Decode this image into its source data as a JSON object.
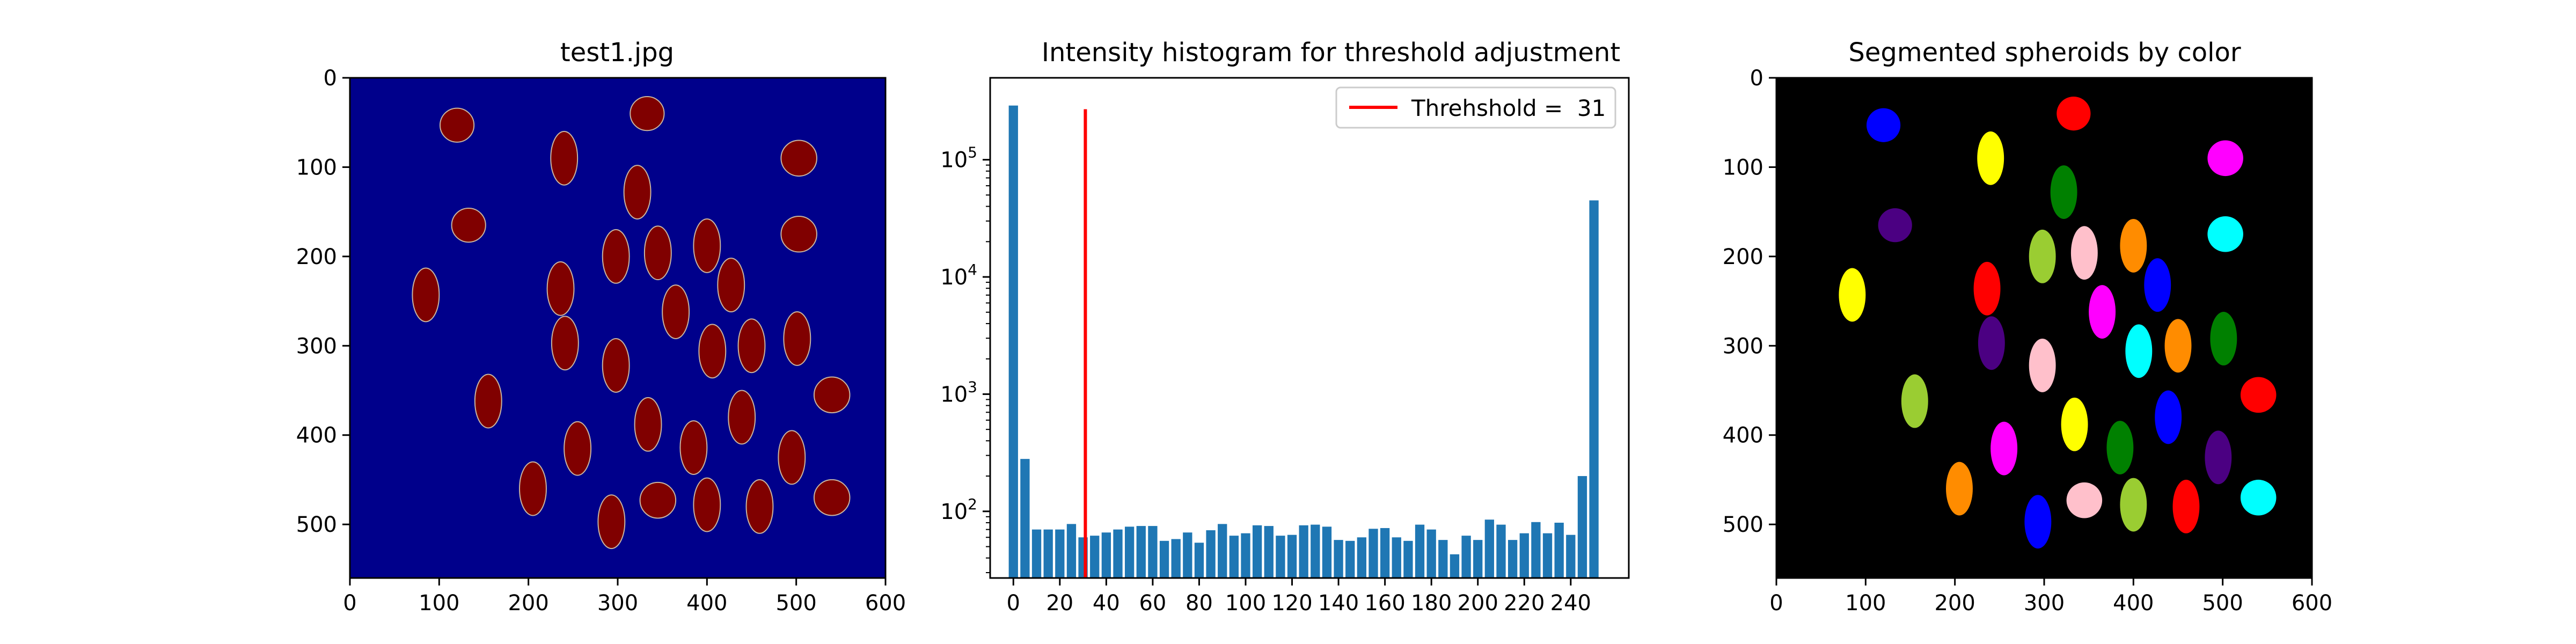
{
  "panel_left": {
    "title": "test1.jpg",
    "xticks": [
      "0",
      "100",
      "200",
      "300",
      "400",
      "500",
      "600"
    ],
    "yticks": [
      "0",
      "100",
      "200",
      "300",
      "400",
      "500"
    ],
    "background_color": "#00008b",
    "spheroid_color": "#800000",
    "spheroid_edge_color": "#c8b4a0"
  },
  "panel_right": {
    "title": "Segmented spheroids by color",
    "xticks": [
      "0",
      "100",
      "200",
      "300",
      "400",
      "500",
      "600"
    ],
    "yticks": [
      "0",
      "100",
      "200",
      "300",
      "400",
      "500"
    ],
    "background_color": "#000000"
  },
  "chart_data": [
    {
      "type": "image",
      "title": "test1.jpg",
      "xlim": [
        0,
        600
      ],
      "ylim": [
        560,
        0
      ],
      "objects": [
        {
          "x": 120,
          "y": 53,
          "rx": 19,
          "ry": 19
        },
        {
          "x": 333,
          "y": 40,
          "rx": 19,
          "ry": 19
        },
        {
          "x": 240,
          "y": 90,
          "rx": 15,
          "ry": 30
        },
        {
          "x": 503,
          "y": 90,
          "rx": 20,
          "ry": 20
        },
        {
          "x": 322,
          "y": 128,
          "rx": 15,
          "ry": 30
        },
        {
          "x": 133,
          "y": 165,
          "rx": 19,
          "ry": 19
        },
        {
          "x": 503,
          "y": 175,
          "rx": 20,
          "ry": 20
        },
        {
          "x": 400,
          "y": 188,
          "rx": 15,
          "ry": 30
        },
        {
          "x": 298,
          "y": 200,
          "rx": 15,
          "ry": 30
        },
        {
          "x": 345,
          "y": 196,
          "rx": 15,
          "ry": 30
        },
        {
          "x": 236,
          "y": 236,
          "rx": 15,
          "ry": 30
        },
        {
          "x": 85,
          "y": 243,
          "rx": 15,
          "ry": 30
        },
        {
          "x": 427,
          "y": 232,
          "rx": 15,
          "ry": 30
        },
        {
          "x": 365,
          "y": 262,
          "rx": 15,
          "ry": 30
        },
        {
          "x": 241,
          "y": 297,
          "rx": 15,
          "ry": 30
        },
        {
          "x": 298,
          "y": 322,
          "rx": 15,
          "ry": 30
        },
        {
          "x": 406,
          "y": 306,
          "rx": 15,
          "ry": 30
        },
        {
          "x": 450,
          "y": 300,
          "rx": 15,
          "ry": 30
        },
        {
          "x": 501,
          "y": 292,
          "rx": 15,
          "ry": 30
        },
        {
          "x": 540,
          "y": 355,
          "rx": 20,
          "ry": 20
        },
        {
          "x": 155,
          "y": 362,
          "rx": 15,
          "ry": 30
        },
        {
          "x": 334,
          "y": 388,
          "rx": 15,
          "ry": 30
        },
        {
          "x": 439,
          "y": 380,
          "rx": 15,
          "ry": 30
        },
        {
          "x": 255,
          "y": 415,
          "rx": 15,
          "ry": 30
        },
        {
          "x": 385,
          "y": 414,
          "rx": 15,
          "ry": 30
        },
        {
          "x": 495,
          "y": 425,
          "rx": 15,
          "ry": 30
        },
        {
          "x": 205,
          "y": 460,
          "rx": 15,
          "ry": 30
        },
        {
          "x": 345,
          "y": 473,
          "rx": 20,
          "ry": 20
        },
        {
          "x": 400,
          "y": 478,
          "rx": 15,
          "ry": 30
        },
        {
          "x": 459,
          "y": 480,
          "rx": 15,
          "ry": 30
        },
        {
          "x": 540,
          "y": 470,
          "rx": 20,
          "ry": 20
        },
        {
          "x": 293,
          "y": 497,
          "rx": 15,
          "ry": 30
        }
      ]
    },
    {
      "type": "bar",
      "title": "Intensity histogram for threshold adjustment",
      "yscale": "log",
      "xlim": [
        -10,
        265
      ],
      "ylim": [
        27,
        500000
      ],
      "x_bin_width": 5,
      "bin_width": 4,
      "xticks": [
        0,
        20,
        40,
        60,
        80,
        100,
        120,
        140,
        160,
        180,
        200,
        220,
        240
      ],
      "yticks": [
        100,
        1000,
        10000,
        100000
      ],
      "x": [
        0,
        5,
        10,
        15,
        20,
        25,
        30,
        35,
        40,
        45,
        50,
        55,
        60,
        65,
        70,
        75,
        80,
        85,
        90,
        95,
        100,
        105,
        110,
        115,
        120,
        125,
        130,
        135,
        140,
        145,
        150,
        155,
        160,
        165,
        170,
        175,
        180,
        185,
        190,
        195,
        200,
        205,
        210,
        215,
        220,
        225,
        230,
        235,
        240,
        245,
        250
      ],
      "values": [
        290000,
        280,
        70,
        70,
        70,
        78,
        60,
        62,
        66,
        70,
        74,
        75,
        75,
        56,
        58,
        66,
        54,
        69,
        78,
        62,
        65,
        76,
        75,
        62,
        63,
        76,
        77,
        74,
        57,
        56,
        60,
        71,
        72,
        60,
        56,
        77,
        70,
        57,
        43,
        62,
        57,
        85,
        77,
        57,
        65,
        81,
        65,
        80,
        63,
        200,
        45000
      ],
      "threshold": {
        "value": 31,
        "name": "Threhshold =  31",
        "color": "#ff0000",
        "ymin": 27,
        "ymax": 270000
      },
      "legend": {
        "location": "upper-right",
        "label": "Threhshold =  31"
      },
      "bar_color": "#1f77b4"
    },
    {
      "type": "image",
      "title": "Segmented spheroids by color",
      "xlim": [
        0,
        600
      ],
      "ylim": [
        560,
        0
      ],
      "objects": [
        {
          "x": 120,
          "y": 53,
          "rx": 19,
          "ry": 19,
          "color": "#0000ff"
        },
        {
          "x": 333,
          "y": 40,
          "rx": 19,
          "ry": 19,
          "color": "#ff0000"
        },
        {
          "x": 240,
          "y": 90,
          "rx": 15,
          "ry": 30,
          "color": "#ffff00"
        },
        {
          "x": 503,
          "y": 90,
          "rx": 20,
          "ry": 20,
          "color": "#ff00ff"
        },
        {
          "x": 322,
          "y": 128,
          "rx": 15,
          "ry": 30,
          "color": "#008000"
        },
        {
          "x": 133,
          "y": 165,
          "rx": 19,
          "ry": 19,
          "color": "#4b0082"
        },
        {
          "x": 503,
          "y": 175,
          "rx": 20,
          "ry": 20,
          "color": "#00ffff"
        },
        {
          "x": 400,
          "y": 188,
          "rx": 15,
          "ry": 30,
          "color": "#ff8c00"
        },
        {
          "x": 298,
          "y": 200,
          "rx": 15,
          "ry": 30,
          "color": "#9acd32"
        },
        {
          "x": 345,
          "y": 196,
          "rx": 15,
          "ry": 30,
          "color": "#ffc0cb"
        },
        {
          "x": 236,
          "y": 236,
          "rx": 15,
          "ry": 30,
          "color": "#ff0000"
        },
        {
          "x": 85,
          "y": 243,
          "rx": 15,
          "ry": 30,
          "color": "#ffff00"
        },
        {
          "x": 427,
          "y": 232,
          "rx": 15,
          "ry": 30,
          "color": "#0000ff"
        },
        {
          "x": 365,
          "y": 262,
          "rx": 15,
          "ry": 30,
          "color": "#ff00ff"
        },
        {
          "x": 241,
          "y": 297,
          "rx": 15,
          "ry": 30,
          "color": "#4b0082"
        },
        {
          "x": 298,
          "y": 322,
          "rx": 15,
          "ry": 30,
          "color": "#ffc0cb"
        },
        {
          "x": 406,
          "y": 306,
          "rx": 15,
          "ry": 30,
          "color": "#00ffff"
        },
        {
          "x": 450,
          "y": 300,
          "rx": 15,
          "ry": 30,
          "color": "#ff8c00"
        },
        {
          "x": 501,
          "y": 292,
          "rx": 15,
          "ry": 30,
          "color": "#008000"
        },
        {
          "x": 540,
          "y": 355,
          "rx": 20,
          "ry": 20,
          "color": "#ff0000"
        },
        {
          "x": 155,
          "y": 362,
          "rx": 15,
          "ry": 30,
          "color": "#9acd32"
        },
        {
          "x": 334,
          "y": 388,
          "rx": 15,
          "ry": 30,
          "color": "#ffff00"
        },
        {
          "x": 439,
          "y": 380,
          "rx": 15,
          "ry": 30,
          "color": "#0000ff"
        },
        {
          "x": 255,
          "y": 415,
          "rx": 15,
          "ry": 30,
          "color": "#ff00ff"
        },
        {
          "x": 385,
          "y": 414,
          "rx": 15,
          "ry": 30,
          "color": "#008000"
        },
        {
          "x": 495,
          "y": 425,
          "rx": 15,
          "ry": 30,
          "color": "#4b0082"
        },
        {
          "x": 205,
          "y": 460,
          "rx": 15,
          "ry": 30,
          "color": "#ff8c00"
        },
        {
          "x": 345,
          "y": 473,
          "rx": 20,
          "ry": 20,
          "color": "#ffc0cb"
        },
        {
          "x": 400,
          "y": 478,
          "rx": 15,
          "ry": 30,
          "color": "#9acd32"
        },
        {
          "x": 459,
          "y": 480,
          "rx": 15,
          "ry": 30,
          "color": "#ff0000"
        },
        {
          "x": 540,
          "y": 470,
          "rx": 20,
          "ry": 20,
          "color": "#00ffff"
        },
        {
          "x": 293,
          "y": 497,
          "rx": 15,
          "ry": 30,
          "color": "#0000ff"
        }
      ]
    }
  ]
}
